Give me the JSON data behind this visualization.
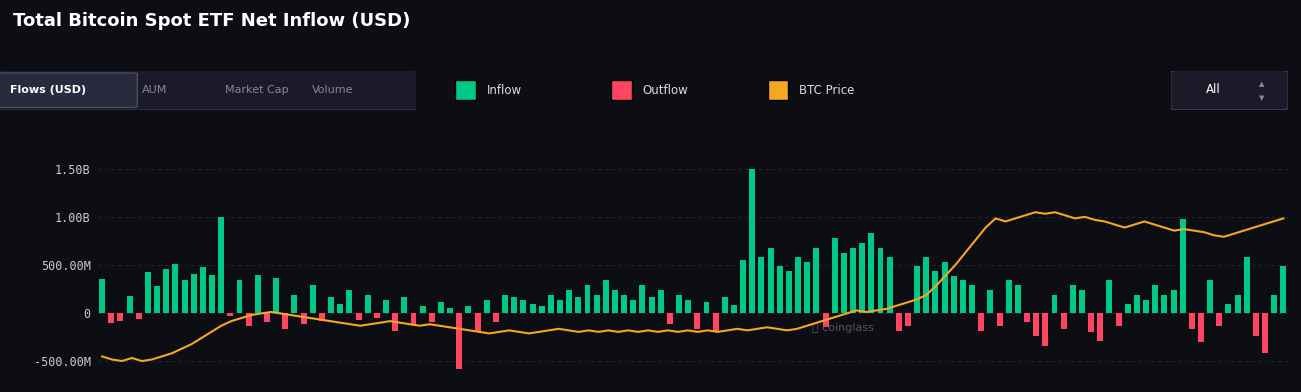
{
  "title": "Total Bitcoin Spot ETF Net Inflow (USD)",
  "background_color": "#0d0d14",
  "plot_bg_color": "#0d0d14",
  "inflow_color": "#00c885",
  "outflow_color": "#ff4560",
  "btc_price_color": "#f5a623",
  "grid_color": "#2a2a3a",
  "text_color": "#ffffff",
  "muted_text": "#aaaaaa",
  "yticks": [
    -500000000,
    0,
    500000000,
    1000000000,
    1500000000
  ],
  "ylim": [
    -700000000,
    1750000000
  ],
  "subtitle_tabs": [
    "Flows (USD)",
    "AUM",
    "Market Cap",
    "Volume"
  ],
  "bar_values": [
    350000000,
    -100000000,
    -80000000,
    180000000,
    -60000000,
    430000000,
    280000000,
    460000000,
    510000000,
    340000000,
    410000000,
    480000000,
    400000000,
    1000000000,
    -30000000,
    340000000,
    -140000000,
    400000000,
    -90000000,
    370000000,
    -170000000,
    190000000,
    -110000000,
    290000000,
    -80000000,
    170000000,
    90000000,
    240000000,
    -70000000,
    190000000,
    -55000000,
    140000000,
    -190000000,
    170000000,
    -120000000,
    70000000,
    -90000000,
    110000000,
    55000000,
    -580000000,
    70000000,
    -190000000,
    140000000,
    -90000000,
    190000000,
    170000000,
    140000000,
    90000000,
    70000000,
    190000000,
    140000000,
    240000000,
    170000000,
    290000000,
    190000000,
    340000000,
    240000000,
    190000000,
    140000000,
    290000000,
    170000000,
    240000000,
    -110000000,
    190000000,
    140000000,
    -170000000,
    120000000,
    -190000000,
    170000000,
    80000000,
    550000000,
    1500000000,
    580000000,
    680000000,
    490000000,
    440000000,
    580000000,
    530000000,
    680000000,
    -150000000,
    780000000,
    630000000,
    680000000,
    730000000,
    830000000,
    680000000,
    580000000,
    -190000000,
    -140000000,
    490000000,
    580000000,
    440000000,
    530000000,
    390000000,
    340000000,
    290000000,
    -190000000,
    240000000,
    -140000000,
    340000000,
    290000000,
    -90000000,
    -240000000,
    -340000000,
    190000000,
    -170000000,
    290000000,
    240000000,
    -200000000,
    -290000000,
    340000000,
    -140000000,
    90000000,
    190000000,
    140000000,
    290000000,
    190000000,
    240000000,
    980000000,
    -170000000,
    -300000000,
    340000000,
    -140000000,
    90000000,
    190000000,
    580000000,
    -240000000,
    -420000000,
    190000000,
    490000000
  ],
  "btc_price_normalized": [
    -0.38,
    -0.4,
    -0.41,
    -0.39,
    -0.41,
    -0.4,
    -0.38,
    -0.36,
    -0.33,
    -0.3,
    -0.26,
    -0.22,
    -0.18,
    -0.15,
    -0.13,
    -0.11,
    -0.1,
    -0.09,
    -0.1,
    -0.11,
    -0.12,
    -0.13,
    -0.14,
    -0.15,
    -0.16,
    -0.17,
    -0.18,
    -0.17,
    -0.16,
    -0.15,
    -0.16,
    -0.17,
    -0.18,
    -0.17,
    -0.18,
    -0.19,
    -0.2,
    -0.21,
    -0.22,
    -0.23,
    -0.22,
    -0.21,
    -0.22,
    -0.23,
    -0.22,
    -0.21,
    -0.2,
    -0.21,
    -0.22,
    -0.21,
    -0.22,
    -0.21,
    -0.22,
    -0.21,
    -0.22,
    -0.21,
    -0.22,
    -0.21,
    -0.22,
    -0.21,
    -0.22,
    -0.21,
    -0.22,
    -0.21,
    -0.2,
    -0.21,
    -0.2,
    -0.19,
    -0.2,
    -0.21,
    -0.2,
    -0.18,
    -0.16,
    -0.14,
    -0.12,
    -0.1,
    -0.08,
    -0.09,
    -0.08,
    -0.07,
    -0.05,
    -0.03,
    -0.01,
    0.02,
    0.08,
    0.15,
    0.22,
    0.3,
    0.38,
    0.46,
    0.52,
    0.5,
    0.52,
    0.54,
    0.56,
    0.55,
    0.56,
    0.54,
    0.52,
    0.53,
    0.51,
    0.5,
    0.48,
    0.46,
    0.48,
    0.5,
    0.48,
    0.46,
    0.44,
    0.45,
    0.44,
    0.43,
    0.41,
    0.4,
    0.42,
    0.44,
    0.46,
    0.48,
    0.5,
    0.52
  ]
}
